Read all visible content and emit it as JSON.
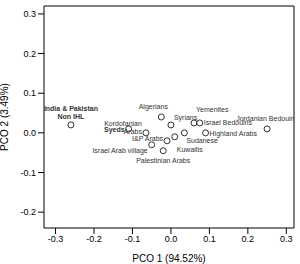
{
  "chart_data": {
    "type": "scatter",
    "x_label": "PCO 1 (94.52%)",
    "y_label": "PCO 2 (3.49%)",
    "labels": [
      "India & Pakistan\nNon IHL",
      "Syeds",
      "Algerians",
      "Kordofanian\nArabs",
      "Syrians",
      "Yemenites",
      "Israel Bedouins",
      "Highland Arabs",
      "Sudanese",
      "Kuwaitis",
      "I&P Arabs",
      "Israel Arab village",
      "Palestinian Arabs",
      "Jordanian Bedouins"
    ],
    "x": [
      -0.26,
      -0.11,
      -0.025,
      -0.065,
      0.0,
      0.06,
      0.075,
      0.09,
      0.035,
      0.01,
      -0.01,
      -0.05,
      -0.02,
      0.25
    ],
    "values": [
      0.02,
      0.01,
      0.04,
      0.0,
      0.02,
      0.025,
      0.025,
      0.0,
      0.0,
      -0.01,
      -0.02,
      -0.03,
      -0.045,
      0.01
    ],
    "xlim": [
      -0.33,
      0.32
    ],
    "ylim": [
      -0.24,
      0.32
    ],
    "xticks": [
      -0.3,
      -0.2,
      -0.1,
      {
        "value": 0,
        "label": "0.0"
      },
      0.1,
      0.2,
      0.3
    ],
    "yticks": [
      -0.2,
      -0.1,
      {
        "value": 0,
        "label": "0.0"
      },
      0.1,
      0.2,
      0.3
    ],
    "marker": "open_circle",
    "color": "#000000",
    "grid": false
  }
}
